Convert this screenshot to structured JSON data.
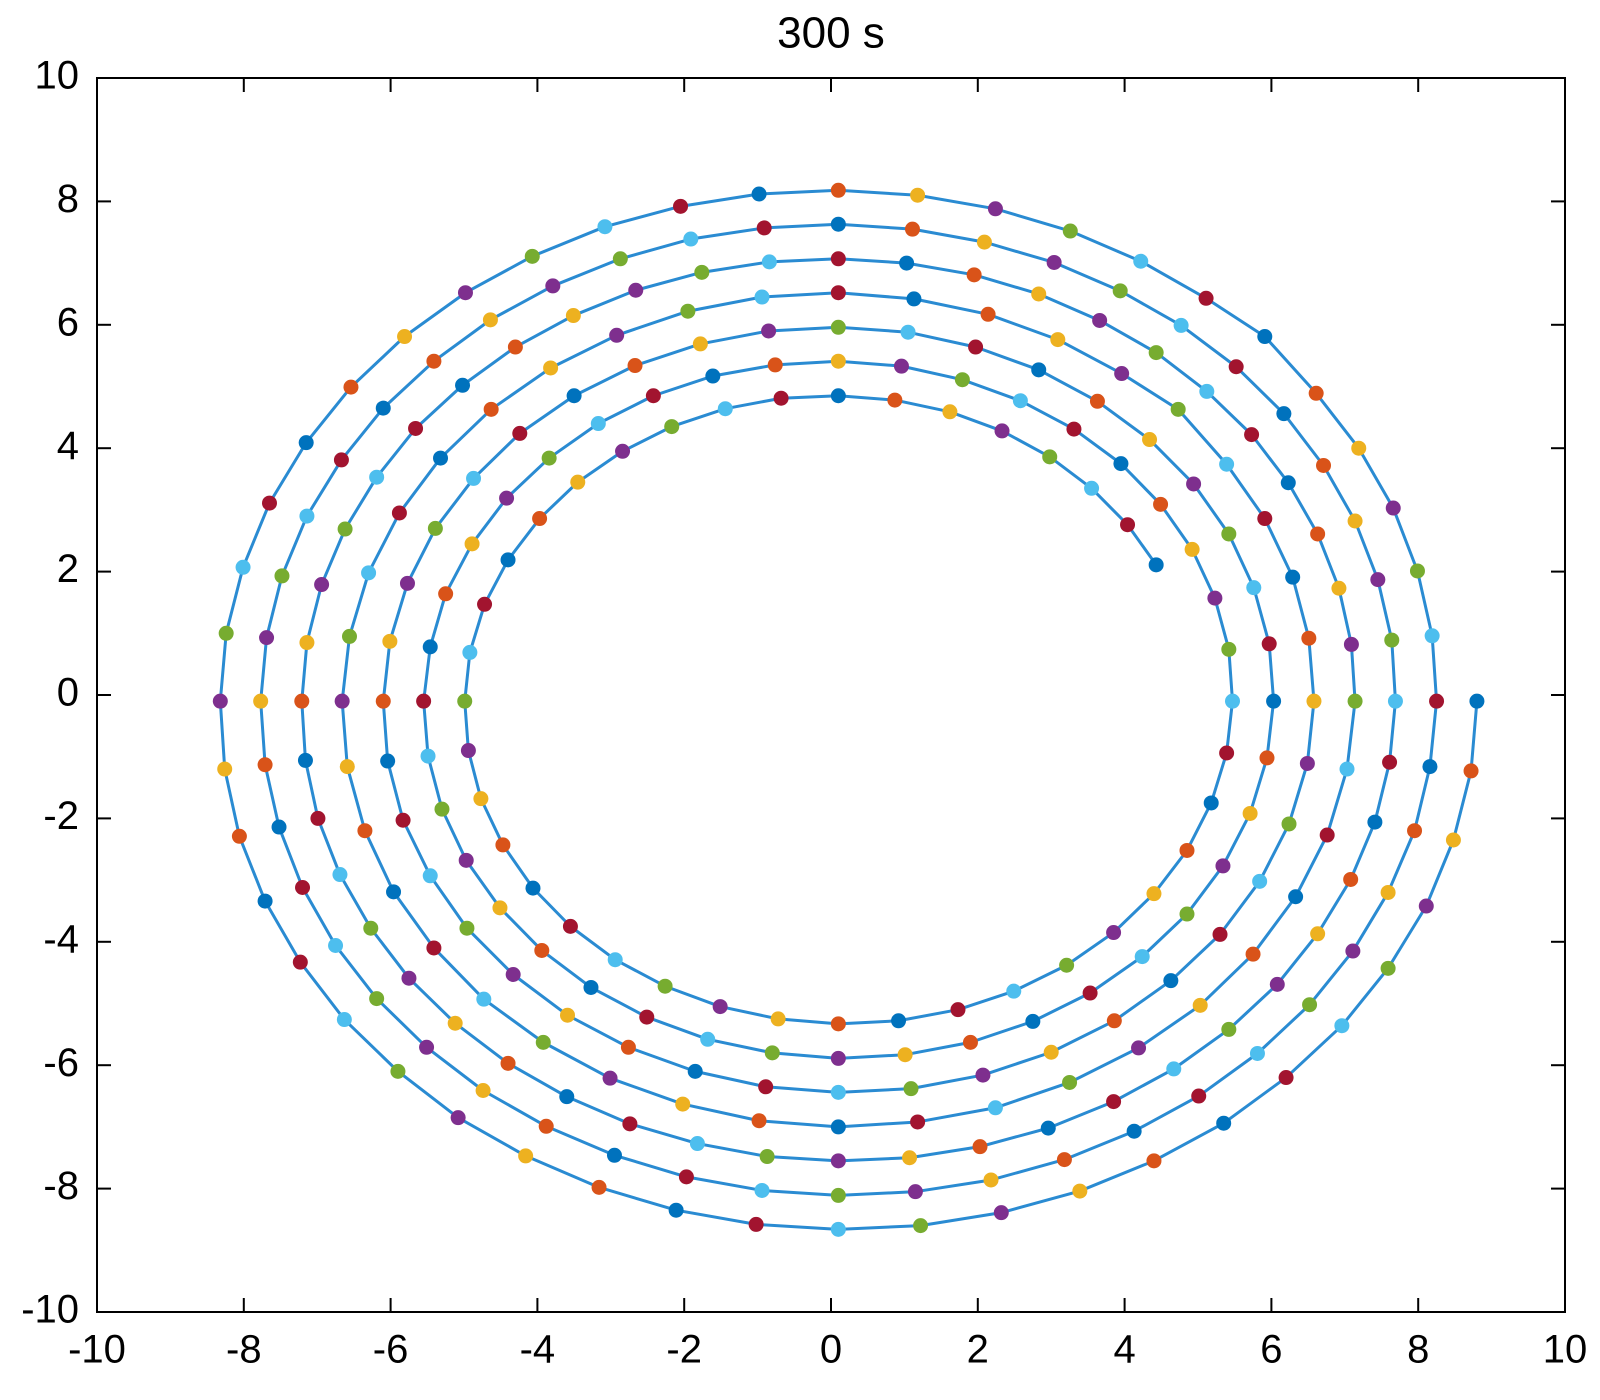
{
  "chart_data": {
    "type": "scatter",
    "title": "300 s",
    "line_color": "#2a8bd2",
    "marker_colors": [
      "#0072bd",
      "#d95319",
      "#edb120",
      "#7e2f8e",
      "#77ac30",
      "#4dbeee",
      "#a2142f"
    ],
    "xlim": [
      -10,
      10
    ],
    "ylim": [
      -10,
      10
    ],
    "xticks": [
      -10,
      -8,
      -6,
      -4,
      -2,
      0,
      2,
      4,
      6,
      8,
      10
    ],
    "yticks": [
      -10,
      -8,
      -6,
      -4,
      -2,
      0,
      2,
      4,
      6,
      8,
      10
    ],
    "grid": false,
    "x": [
      8.8,
      8.72,
      8.48,
      8.11,
      7.59,
      6.96,
      6.2,
      5.35,
      4.4,
      3.39,
      2.32,
      1.22,
      0.1,
      -1.02,
      -2.11,
      -3.16,
      -4.16,
      -5.08,
      -5.9,
      -6.63,
      -7.23,
      -7.71,
      -8.06,
      -8.26,
      -8.32,
      -8.24,
      -8.01,
      -7.65,
      -7.15,
      -6.54,
      -5.81,
      -4.98,
      -4.07,
      -3.08,
      -2.05,
      -0.98,
      0.1,
      1.18,
      2.24,
      3.26,
      4.22,
      5.11,
      5.91,
      6.61,
      7.19,
      7.66,
      7.99,
      8.19,
      8.25,
      8.16,
      7.95,
      7.59,
      7.11,
      6.52,
      5.81,
      5.01,
      4.13,
      3.18,
      2.18,
      1.15,
      0.1,
      -0.94,
      -1.97,
      -2.95,
      -3.88,
      -4.74,
      -5.51,
      -6.19,
      -6.75,
      -7.2,
      -7.52,
      -7.71,
      -7.77,
      -7.69,
      -7.48,
      -7.14,
      -6.67,
      -6.1,
      -5.41,
      -4.64,
      -3.79,
      -2.87,
      -1.91,
      -0.91,
      0.1,
      1.11,
      2.09,
      3.04,
      3.94,
      4.77,
      5.52,
      6.17,
      6.71,
      7.14,
      7.45,
      7.64,
      7.69,
      7.61,
      7.41,
      7.08,
      6.63,
      6.08,
      5.42,
      4.67,
      3.85,
      2.96,
      2.03,
      1.07,
      0.1,
      -0.87,
      -1.82,
      -2.74,
      -3.6,
      -4.4,
      -5.12,
      -5.75,
      -6.27,
      -6.69,
      -6.99,
      -7.16,
      -7.21,
      -7.14,
      -6.94,
      -6.62,
      -6.19,
      -5.66,
      -5.02,
      -4.3,
      -3.51,
      -2.66,
      -1.76,
      -0.84,
      0.1,
      1.03,
      1.95,
      2.83,
      3.66,
      4.43,
      5.12,
      5.73,
      6.23,
      6.63,
      6.92,
      7.09,
      7.14,
      7.03,
      6.76,
      6.33,
      5.75,
      5.03,
      4.19,
      3.25,
      2.24,
      1.18,
      0.1,
      -0.98,
      -2.02,
      -3.01,
      -3.92,
      -4.73,
      -5.41,
      -5.96,
      -6.35,
      -6.59,
      -6.66,
      -6.56,
      -6.3,
      -5.88,
      -5.32,
      -4.63,
      -3.82,
      -2.92,
      -1.95,
      -0.94,
      0.1,
      1.13,
      2.14,
      3.09,
      3.96,
      4.73,
      5.39,
      5.91,
      6.29,
      6.51,
      6.58,
      6.49,
      6.24,
      5.84,
      5.3,
      4.63,
      3.86,
      3.0,
      2.07,
      1.09,
      0.1,
      -0.89,
      -1.85,
      -2.76,
      -3.59,
      -4.33,
      -4.96,
      -5.46,
      -5.83,
      -6.04,
      -6.1,
      -6.01,
      -5.77,
      -5.39,
      -4.87,
      -4.24,
      -3.5,
      -2.67,
      -1.78,
      -0.85,
      0.1,
      1.05,
      1.97,
      2.83,
      3.63,
      4.34,
      4.94,
      5.42,
      5.76,
      5.97,
      6.03,
      5.94,
      5.71,
      5.34,
      4.85,
      4.24,
      3.53,
      2.75,
      1.9,
      1.01,
      0.1,
      -0.8,
      -1.68,
      -2.51,
      -3.27,
      -3.94,
      -4.51,
      -4.97,
      -5.3,
      -5.49,
      -5.55,
      -5.46,
      -5.25,
      -4.89,
      -4.42,
      -3.84,
      -3.17,
      -2.42,
      -1.61,
      -0.76,
      0.1,
      0.96,
      1.79,
      2.58,
      3.31,
      3.95,
      4.49,
      4.92,
      5.23,
      5.42,
      5.47,
      5.39,
      5.18,
      4.85,
      4.4,
      3.85,
      3.21,
      2.49,
      1.73,
      0.92,
      0.1,
      -0.72,
      -1.51,
      -2.26,
      -2.94,
      -3.55,
      -4.06,
      -4.47,
      -4.77,
      -4.94,
      -4.99,
      -4.92,
      -4.72,
      -4.4,
      -3.97,
      -3.45,
      -2.84,
      -2.17,
      -1.44,
      -0.68,
      0.1,
      0.87,
      1.62,
      2.33,
      2.98,
      3.55,
      4.04,
      4.43
    ],
    "y": [
      -0.1,
      -1.23,
      -2.35,
      -3.42,
      -4.43,
      -5.36,
      -6.2,
      -6.94,
      -7.55,
      -8.04,
      -8.39,
      -8.6,
      -8.66,
      -8.58,
      -8.35,
      -7.98,
      -7.47,
      -6.85,
      -6.1,
      -5.26,
      -4.33,
      -3.34,
      -2.29,
      -1.2,
      -0.1,
      1.0,
      2.07,
      3.11,
      4.09,
      4.99,
      5.81,
      6.52,
      7.11,
      7.59,
      7.92,
      8.12,
      8.18,
      8.1,
      7.88,
      7.52,
      7.03,
      6.43,
      5.81,
      4.89,
      4.0,
      3.03,
      2.01,
      0.96,
      -0.1,
      -1.16,
      -2.2,
      -3.2,
      -4.15,
      -5.02,
      -5.81,
      -6.5,
      -7.07,
      -7.53,
      -7.86,
      -8.05,
      -8.11,
      -8.03,
      -7.81,
      -7.46,
      -6.99,
      -6.41,
      -5.71,
      -4.92,
      -4.06,
      -3.12,
      -2.14,
      -1.13,
      -0.1,
      0.93,
      1.93,
      2.9,
      3.81,
      4.65,
      5.41,
      6.08,
      6.63,
      7.07,
      7.39,
      7.57,
      7.63,
      7.55,
      7.34,
      7.01,
      6.55,
      5.99,
      5.32,
      4.56,
      3.72,
      2.82,
      1.87,
      0.89,
      -0.1,
      -1.09,
      -2.06,
      -2.99,
      -3.87,
      -4.69,
      -5.42,
      -6.06,
      -6.59,
      -7.02,
      -7.32,
      -7.5,
      -7.55,
      -7.48,
      -7.27,
      -6.95,
      -6.51,
      -5.97,
      -5.32,
      -4.59,
      -3.78,
      -2.91,
      -2.0,
      -1.06,
      -0.1,
      0.85,
      1.79,
      2.69,
      3.53,
      4.32,
      5.02,
      5.64,
      6.15,
      6.56,
      6.85,
      7.02,
      7.07,
      7.0,
      6.81,
      6.5,
      6.07,
      5.55,
      4.92,
      4.22,
      3.44,
      2.61,
      1.73,
      0.82,
      -0.1,
      -1.2,
      -2.27,
      -3.27,
      -4.2,
      -5.03,
      -5.72,
      -6.28,
      -6.69,
      -6.92,
      -7.0,
      -6.9,
      -6.63,
      -6.21,
      -5.63,
      -4.93,
      -4.1,
      -3.19,
      -2.2,
      -1.16,
      -0.1,
      0.95,
      1.98,
      2.95,
      3.84,
      4.63,
      5.3,
      5.83,
      6.22,
      6.45,
      6.52,
      6.42,
      6.17,
      5.76,
      5.21,
      4.63,
      3.74,
      2.86,
      1.91,
      0.92,
      -0.1,
      -1.11,
      -2.09,
      -3.02,
      -3.88,
      -4.63,
      -5.28,
      -5.79,
      -6.16,
      -6.38,
      -6.44,
      -6.35,
      -6.1,
      -5.71,
      -5.19,
      -4.53,
      -3.78,
      -2.93,
      -2.03,
      -1.07,
      -0.1,
      0.87,
      1.81,
      2.7,
      3.51,
      4.24,
      4.85,
      5.34,
      5.69,
      5.9,
      5.96,
      5.88,
      5.64,
      5.27,
      4.76,
      4.14,
      3.42,
      2.61,
      1.74,
      0.83,
      -0.1,
      -1.02,
      -1.92,
      -2.77,
      -3.55,
      -4.24,
      -4.83,
      -5.29,
      -5.63,
      -5.83,
      -5.89,
      -5.8,
      -5.58,
      -5.22,
      -4.74,
      -4.14,
      -3.45,
      -2.68,
      -1.85,
      -0.99,
      -0.1,
      0.78,
      1.64,
      2.45,
      3.19,
      3.84,
      4.4,
      4.85,
      5.17,
      5.35,
      5.41,
      5.33,
      5.11,
      4.77,
      4.31,
      3.75,
      3.09,
      2.36,
      1.57,
      0.74,
      -0.1,
      -0.94,
      -1.75,
      -2.52,
      -3.22,
      -3.85,
      -4.38,
      -4.8,
      -5.1,
      -5.28,
      -5.33,
      -5.25,
      -5.05,
      -4.72,
      -4.29,
      -3.75,
      -3.13,
      -2.43,
      -1.68,
      -0.9,
      -0.1,
      0.69,
      1.47,
      2.19,
      2.86,
      3.45,
      3.95,
      4.35,
      4.64,
      4.81,
      4.85,
      4.78,
      4.59,
      4.28,
      3.86,
      3.35,
      2.76,
      2.11
    ]
  }
}
